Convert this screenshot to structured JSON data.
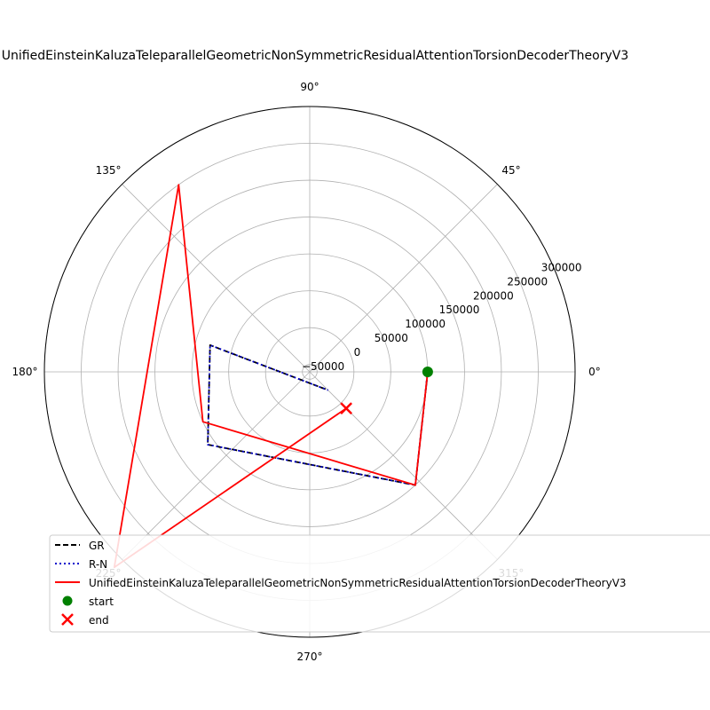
{
  "chart_data": {
    "type": "line",
    "projection": "polar",
    "title": "UnifiedEinsteinKaluzaTeleparallelGeometricNonSymmetricResidualAttentionTorsionDecoderTheoryV3",
    "rlim": [
      -60000,
      300000
    ],
    "radial_ticks": [
      -50000,
      0,
      50000,
      100000,
      150000,
      200000,
      250000,
      300000
    ],
    "radial_tick_labels": [
      "−50000",
      "0",
      "50000",
      "100000",
      "150000",
      "200000",
      "250000",
      "300000"
    ],
    "angle_ticks": [
      0,
      45,
      90,
      135,
      180,
      225,
      270,
      315
    ],
    "angle_tick_labels": [
      "0°",
      "45°",
      "90°",
      "135°",
      "180°",
      "225°",
      "270°",
      "315°"
    ],
    "grid": true,
    "legend_position": "lower-left",
    "series": [
      {
        "name": "GR",
        "color": "#000000",
        "style": "dashed",
        "theta_deg": [
          0,
          313,
          215.5,
          165,
          315
        ],
        "r": [
          100000,
          150000,
          110000,
          80000,
          -25000
        ]
      },
      {
        "name": "R-N",
        "color": "#0000cc",
        "style": "dotted",
        "theta_deg": [
          0,
          313,
          215.5,
          165,
          315
        ],
        "r": [
          100000,
          150000,
          110000,
          80000,
          -25000
        ]
      },
      {
        "name": "UnifiedEinsteinKaluzaTeleparallelGeometricNonSymmetricResidualAttentionTorsionDecoderTheoryV3",
        "color": "#ff0000",
        "style": "solid",
        "theta_deg": [
          0,
          313,
          205,
          125,
          225,
          315
        ],
        "r": [
          100000,
          150000,
          100000,
          250000,
          315000,
          10000
        ]
      }
    ],
    "markers": [
      {
        "name": "start",
        "color": "#008000",
        "shape": "circle",
        "theta_deg": 0,
        "r": 100000
      },
      {
        "name": "end",
        "color": "#ff0000",
        "shape": "x",
        "theta_deg": 315,
        "r": 10000
      }
    ],
    "legend": [
      "GR",
      "R-N",
      "UnifiedEinsteinKaluzaTeleparallelGeometricNonSymmetricResidualAttentionTorsionDecoderTheoryV3",
      "start",
      "end"
    ]
  }
}
